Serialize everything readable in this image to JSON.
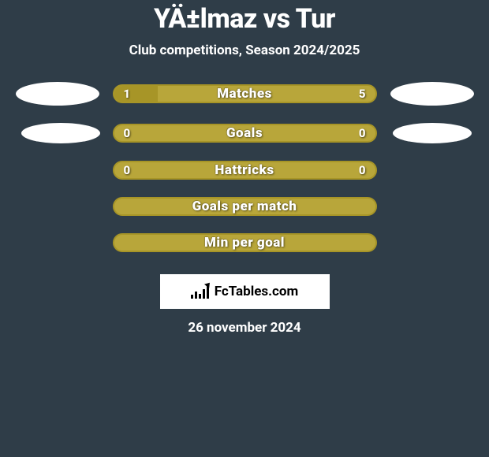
{
  "header": {
    "title": "YÄ±lmaz vs Tur",
    "subtitle": "Club competitions, Season 2024/2025"
  },
  "colors": {
    "background": "#2f3d48",
    "accent": "#a79527",
    "accent_light": "#b8a63a",
    "text": "#ffffff",
    "placeholder": "#ffffff"
  },
  "stats": [
    {
      "label": "Matches",
      "left_value": "1",
      "right_value": "5",
      "left_pct": 16.67,
      "border_color": "#a79527",
      "fill_left_color": "#a79527",
      "track_color": "#b8a63a",
      "show_left_photo": true,
      "show_right_photo": true,
      "left_photo_size": "lg",
      "right_photo_size": "lg"
    },
    {
      "label": "Goals",
      "left_value": "0",
      "right_value": "0",
      "left_pct": 0,
      "border_color": "#a79527",
      "fill_left_color": "#a79527",
      "track_color": "#b8a63a",
      "show_left_photo": true,
      "show_right_photo": true,
      "left_photo_size": "md-l",
      "right_photo_size": "md-r"
    },
    {
      "label": "Hattricks",
      "left_value": "0",
      "right_value": "0",
      "left_pct": 0,
      "border_color": "#a79527",
      "fill_left_color": "#a79527",
      "track_color": "#b8a63a",
      "show_left_photo": false,
      "show_right_photo": false
    },
    {
      "label": "Goals per match",
      "left_value": "",
      "right_value": "",
      "left_pct": 0,
      "border_color": "#a79527",
      "fill_left_color": "#a79527",
      "track_color": "#b8a63a",
      "show_left_photo": false,
      "show_right_photo": false
    },
    {
      "label": "Min per goal",
      "left_value": "",
      "right_value": "",
      "left_pct": 0,
      "border_color": "#a79527",
      "fill_left_color": "#a79527",
      "track_color": "#b8a63a",
      "show_left_photo": false,
      "show_right_photo": false
    }
  ],
  "footer": {
    "logo_text": "FcTables.com",
    "date": "26 november 2024"
  }
}
